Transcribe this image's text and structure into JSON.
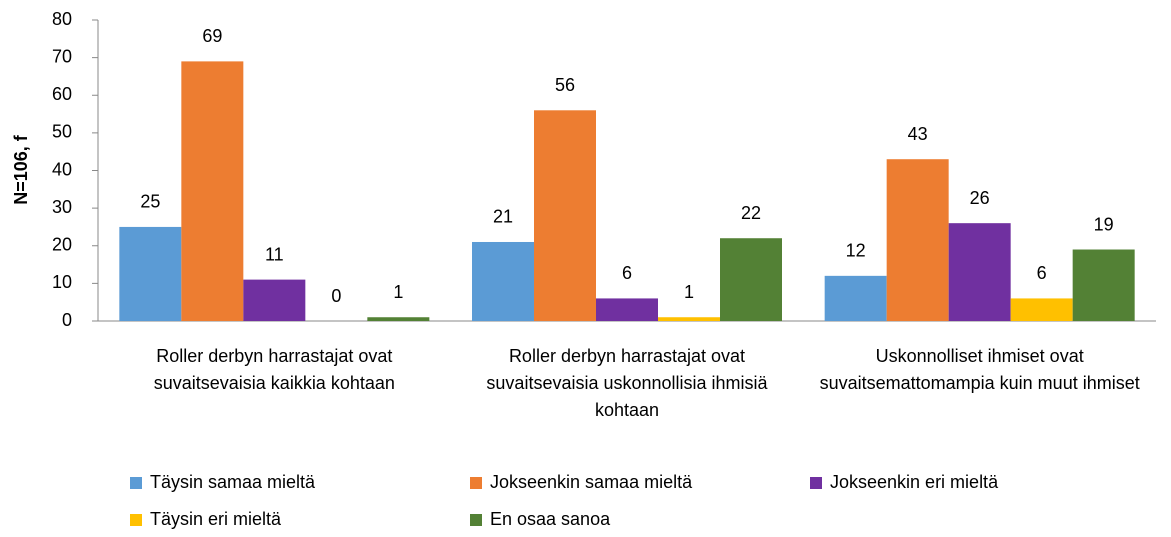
{
  "chart_data": {
    "type": "bar",
    "y_label": "N=106, f",
    "categories": [
      "Roller derbyn harrastajat ovat suvaitsevaisia kaikkia kohtaan",
      "Roller derbyn harrastajat ovat suvaitsevaisia uskonnollisia ihmisiä kohtaan",
      "Uskonnolliset ihmiset ovat suvaitsemattomampia kuin muut ihmiset"
    ],
    "series": [
      {
        "name": "Täysin samaa mieltä",
        "color": "#5b9bd5",
        "values": [
          25,
          21,
          12
        ]
      },
      {
        "name": "Jokseenkin samaa mieltä",
        "color": "#ed7d31",
        "values": [
          69,
          56,
          43
        ]
      },
      {
        "name": "Jokseenkin eri mieltä",
        "color": "#7030a0",
        "values": [
          11,
          6,
          26
        ]
      },
      {
        "name": "Täysin eri mieltä",
        "color": "#ffc000",
        "values": [
          0,
          1,
          6
        ]
      },
      {
        "name": "En osaa sanoa",
        "color": "#538135",
        "values": [
          1,
          22,
          19
        ]
      }
    ],
    "ylim": [
      0,
      80
    ],
    "yticks": [
      0,
      10,
      20,
      30,
      40,
      50,
      60,
      70,
      80
    ],
    "legend": "bottom"
  }
}
